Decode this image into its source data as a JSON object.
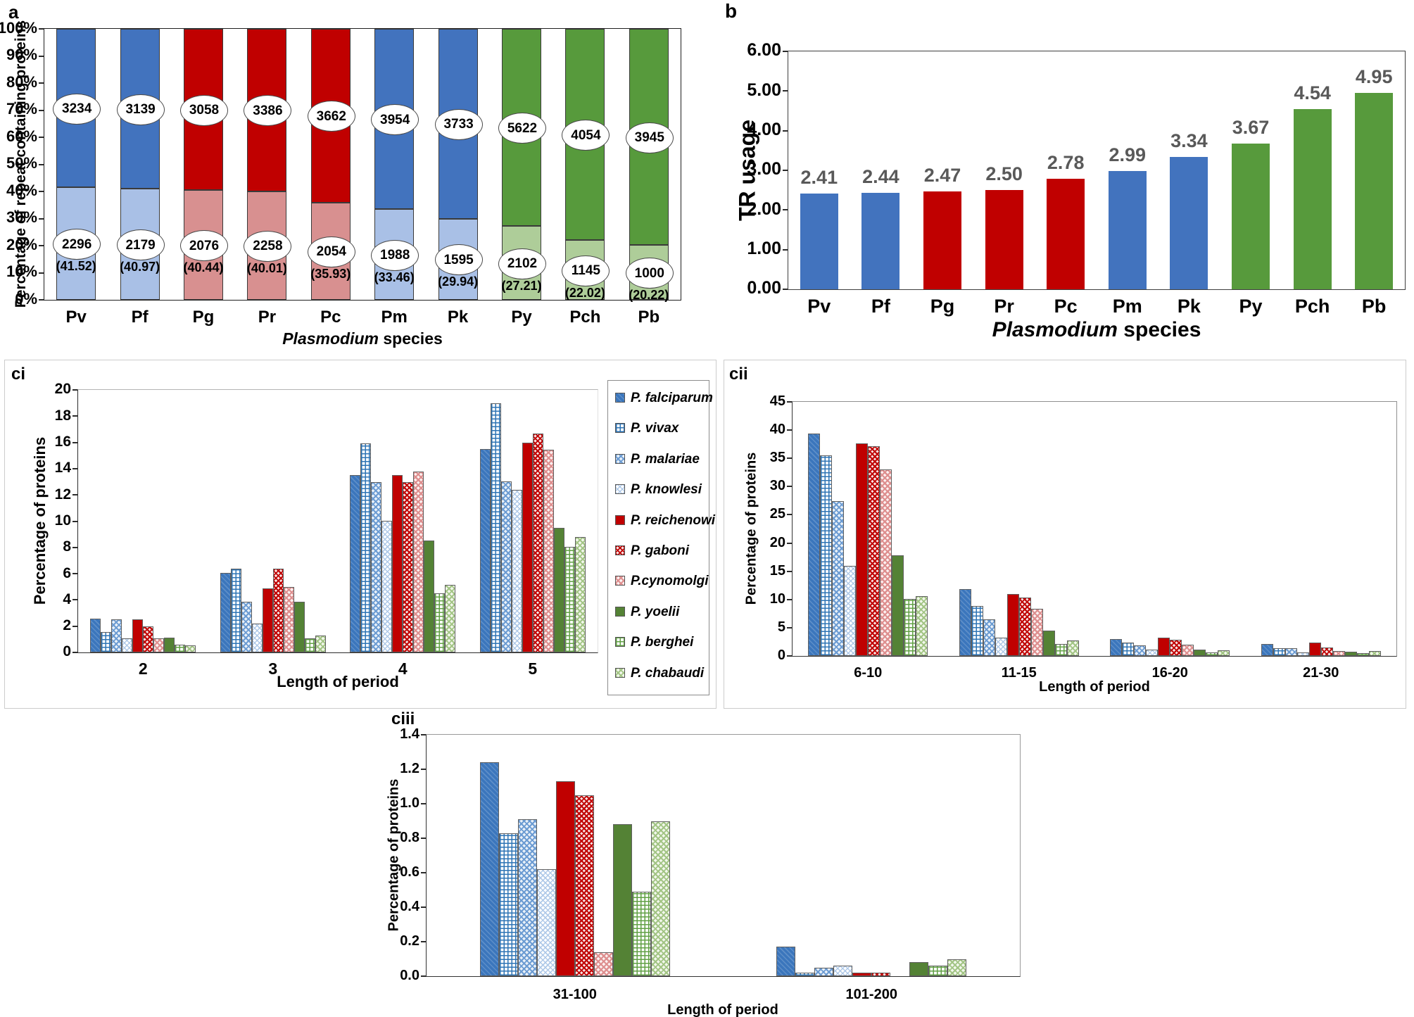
{
  "colors": {
    "blue": "#4273BE",
    "blue_light": "#A9C0E6",
    "red": "#C00000",
    "red_light": "#D89090",
    "green": "#579A3C",
    "green_light": "#AECD99",
    "value_label_gray": "#595959"
  },
  "chart_data": [
    {
      "id": "a",
      "panel_label": "a",
      "type": "stacked-bar",
      "ylabel": "Percentage of repeat containing proteins",
      "xlabel": {
        "italic": "Plasmodium",
        "rest": " species"
      },
      "ylim": [
        0,
        100
      ],
      "yticks": [
        "0%",
        "10%",
        "20%",
        "30%",
        "40%",
        "50%",
        "60%",
        "70%",
        "80%",
        "90%",
        "100%"
      ],
      "categories": [
        "Pv",
        "Pf",
        "Pg",
        "Pr",
        "Pc",
        "Pm",
        "Pk",
        "Py",
        "Pch",
        "Pb"
      ],
      "color_groups": [
        "blue",
        "blue",
        "red",
        "red",
        "red",
        "blue",
        "blue",
        "green",
        "green",
        "green"
      ],
      "upper_counts": [
        3234,
        3139,
        3058,
        3386,
        3662,
        3954,
        3733,
        5622,
        4054,
        3945
      ],
      "lower_counts": [
        2296,
        2179,
        2076,
        2258,
        2054,
        1988,
        1595,
        2102,
        1145,
        1000
      ],
      "lower_pct": [
        41.52,
        40.97,
        40.44,
        40.01,
        35.93,
        33.46,
        29.94,
        27.21,
        22.02,
        20.22
      ],
      "lower_pct_labels": [
        "(41.52)",
        "(40.97)",
        "(40.44)",
        "(40.01)",
        "(35.93)",
        "(33.46)",
        "(29.94)",
        "(27.21)",
        "(22.02)",
        "(20.22)"
      ],
      "grid": false
    },
    {
      "id": "b",
      "panel_label": "b",
      "type": "bar",
      "ylabel": "TR usage",
      "xlabel": {
        "italic": "Plasmodium",
        "rest": " species"
      },
      "ylim": [
        0,
        6
      ],
      "yticks": [
        "0.00",
        "1.00",
        "2.00",
        "3.00",
        "4.00",
        "5.00",
        "6.00"
      ],
      "categories": [
        "Pv",
        "Pf",
        "Pg",
        "Pr",
        "Pc",
        "Pm",
        "Pk",
        "Py",
        "Pch",
        "Pb"
      ],
      "color_groups": [
        "blue",
        "blue",
        "red",
        "red",
        "red",
        "blue",
        "blue",
        "green",
        "green",
        "green"
      ],
      "values": [
        2.41,
        2.44,
        2.47,
        2.5,
        2.78,
        2.99,
        3.34,
        3.67,
        4.54,
        4.95
      ],
      "value_labels": [
        "2.41",
        "2.44",
        "2.47",
        "2.50",
        "2.78",
        "2.99",
        "3.34",
        "3.67",
        "4.54",
        "4.95"
      ],
      "grid": false
    },
    {
      "id": "ci",
      "panel_label": "ci",
      "type": "grouped-bar",
      "ylabel": "Percentage of proteins",
      "xlabel": "Length of period",
      "ylim": [
        0,
        20
      ],
      "yticks": [
        "0",
        "2",
        "4",
        "6",
        "8",
        "10",
        "12",
        "14",
        "16",
        "18",
        "20"
      ],
      "categories": [
        "2",
        "3",
        "4",
        "5"
      ],
      "legend_position": "right",
      "series": [
        {
          "name": "P. falciparum",
          "pattern": "blue-solid",
          "values": [
            2.55,
            6.05,
            13.5,
            15.5
          ]
        },
        {
          "name": "P. vivax",
          "pattern": "blue-grid",
          "values": [
            1.55,
            6.4,
            15.95,
            19.0
          ]
        },
        {
          "name": "P. malariae",
          "pattern": "blue-check",
          "values": [
            2.5,
            3.85,
            12.95,
            13.05
          ]
        },
        {
          "name": "P. knowlesi",
          "pattern": "blue-dots",
          "values": [
            1.05,
            2.2,
            10.05,
            12.4
          ]
        },
        {
          "name": "P. reichenowi",
          "pattern": "red-solid",
          "values": [
            2.5,
            4.9,
            13.5,
            16.0
          ]
        },
        {
          "name": "P. gaboni",
          "pattern": "red-grid",
          "values": [
            2.0,
            6.4,
            13.0,
            16.7
          ]
        },
        {
          "name": "P.cynomolgi",
          "pattern": "red-check",
          "values": [
            1.1,
            5.0,
            13.8,
            15.45
          ]
        },
        {
          "name": "P. yoelii",
          "pattern": "green-solid",
          "values": [
            1.15,
            3.85,
            8.5,
            9.5
          ]
        },
        {
          "name": "P. berghei",
          "pattern": "green-grid",
          "values": [
            0.6,
            1.1,
            4.5,
            8.05
          ]
        },
        {
          "name": "P. chabaudi",
          "pattern": "green-check",
          "values": [
            0.55,
            1.3,
            5.15,
            8.8
          ]
        }
      ],
      "grid": false
    },
    {
      "id": "cii",
      "panel_label": "cii",
      "type": "grouped-bar",
      "ylabel": "Percentage of proteins",
      "xlabel": "Length of period",
      "ylim": [
        0,
        45
      ],
      "yticks": [
        "0",
        "5",
        "10",
        "15",
        "20",
        "25",
        "30",
        "35",
        "40",
        "45"
      ],
      "categories": [
        "6-10",
        "11-15",
        "16-20",
        "21-30"
      ],
      "series": [
        {
          "name": "P. falciparum",
          "pattern": "blue-solid",
          "values": [
            39.4,
            11.9,
            3.0,
            2.1
          ]
        },
        {
          "name": "P. vivax",
          "pattern": "blue-grid",
          "values": [
            35.5,
            8.9,
            2.4,
            1.35
          ]
        },
        {
          "name": "P. malariae",
          "pattern": "blue-check",
          "values": [
            27.4,
            6.5,
            1.9,
            1.35
          ]
        },
        {
          "name": "P. knowlesi",
          "pattern": "blue-dots",
          "values": [
            16.0,
            3.2,
            1.1,
            0.65
          ]
        },
        {
          "name": "P. reichenowi",
          "pattern": "red-solid",
          "values": [
            37.6,
            11.0,
            3.3,
            2.35
          ]
        },
        {
          "name": "P. gaboni",
          "pattern": "red-grid",
          "values": [
            37.2,
            10.3,
            2.85,
            1.45
          ]
        },
        {
          "name": "P.cynomolgi",
          "pattern": "red-check",
          "values": [
            33.0,
            8.4,
            2.05,
            0.85
          ]
        },
        {
          "name": "P. yoelii",
          "pattern": "green-solid",
          "values": [
            17.8,
            4.5,
            1.1,
            0.75
          ]
        },
        {
          "name": "P. berghei",
          "pattern": "green-grid",
          "values": [
            10.1,
            2.1,
            0.65,
            0.45
          ]
        },
        {
          "name": "P. chabaudi",
          "pattern": "green-check",
          "values": [
            10.6,
            2.7,
            0.95,
            0.85
          ]
        }
      ],
      "grid": false
    },
    {
      "id": "ciii",
      "panel_label": "ciii",
      "type": "grouped-bar",
      "ylabel": "Percentage of proteins",
      "xlabel": "Length of period",
      "ylim": [
        0,
        1.4
      ],
      "yticks": [
        "0.0",
        "0.2",
        "0.4",
        "0.6",
        "0.8",
        "1.0",
        "1.2",
        "1.4"
      ],
      "categories": [
        "31-100",
        "101-200"
      ],
      "series": [
        {
          "name": "P. falciparum",
          "pattern": "blue-solid",
          "values": [
            1.24,
            0.17
          ]
        },
        {
          "name": "P. vivax",
          "pattern": "blue-grid",
          "values": [
            0.83,
            0.02
          ]
        },
        {
          "name": "P. malariae",
          "pattern": "blue-check",
          "values": [
            0.91,
            0.05
          ]
        },
        {
          "name": "P. knowlesi",
          "pattern": "blue-dots",
          "values": [
            0.62,
            0.06
          ]
        },
        {
          "name": "P. reichenowi",
          "pattern": "red-solid",
          "values": [
            1.13,
            0.02
          ]
        },
        {
          "name": "P. gaboni",
          "pattern": "red-grid",
          "values": [
            1.05,
            0.02
          ]
        },
        {
          "name": "P.cynomolgi",
          "pattern": "red-check",
          "values": [
            0.14,
            0
          ]
        },
        {
          "name": "P. yoelii",
          "pattern": "green-solid",
          "values": [
            0.88,
            0.08
          ]
        },
        {
          "name": "P. berghei",
          "pattern": "green-grid",
          "values": [
            0.49,
            0.06
          ]
        },
        {
          "name": "P. chabaudi",
          "pattern": "green-check",
          "values": [
            0.9,
            0.1
          ]
        }
      ],
      "grid": false
    }
  ]
}
